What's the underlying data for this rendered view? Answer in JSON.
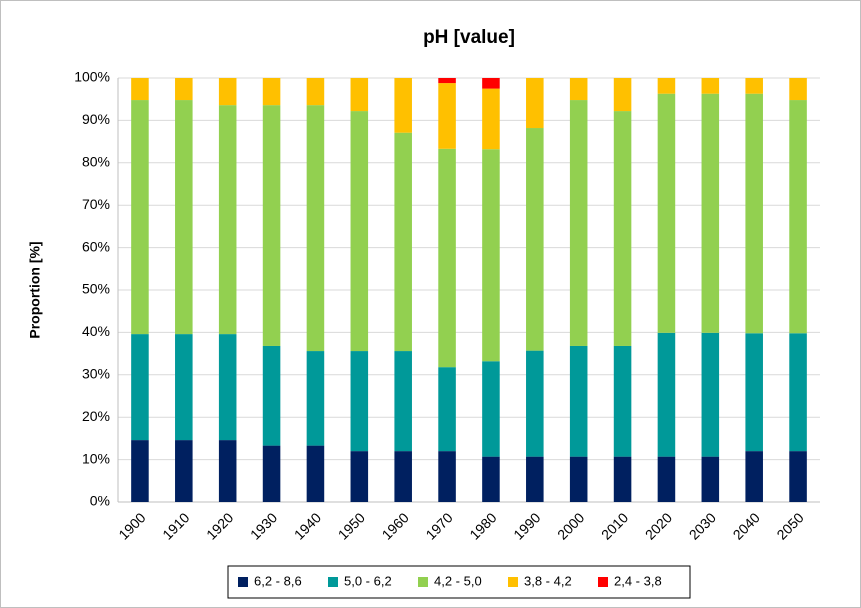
{
  "chart_data": {
    "type": "stacked_bar",
    "title": "pH [value]",
    "y_label": "Proportion [%]",
    "categories": [
      "1900",
      "1910",
      "1920",
      "1930",
      "1940",
      "1950",
      "1960",
      "1970",
      "1980",
      "1990",
      "2000",
      "2010",
      "2020",
      "2030",
      "2040",
      "2050"
    ],
    "series": [
      {
        "name": "6,2 - 8,6",
        "color": "#002060",
        "values": [
          14.6,
          14.6,
          14.6,
          13.3,
          13.3,
          12,
          12,
          12,
          10.7,
          10.7,
          10.7,
          10.7,
          10.7,
          10.7,
          12,
          12
        ]
      },
      {
        "name": "5,0 - 6,2",
        "color": "#009999",
        "values": [
          25,
          25,
          25,
          23.5,
          22.3,
          23.6,
          23.6,
          19.8,
          22.5,
          25,
          26.1,
          26.1,
          29.2,
          29.2,
          27.8,
          27.8
        ]
      },
      {
        "name": "4,2 - 5,0",
        "color": "#92d050",
        "values": [
          55.2,
          55.2,
          54,
          56.8,
          58,
          56.6,
          51.5,
          51.5,
          50,
          52.5,
          58,
          55.4,
          56.4,
          56.4,
          56.5,
          55
        ]
      },
      {
        "name": "3,8 - 4,2",
        "color": "#ffc000",
        "values": [
          5.2,
          5.2,
          6.4,
          6.4,
          6.4,
          7.8,
          12.9,
          15.5,
          14.3,
          11.8,
          5.2,
          7.8,
          3.7,
          3.7,
          3.7,
          5.2
        ]
      },
      {
        "name": "2,4 - 3,8",
        "color": "#ff0000",
        "values": [
          0,
          0,
          0,
          0,
          0,
          0,
          0,
          1.2,
          2.5,
          0,
          0,
          0,
          0,
          0,
          0,
          0
        ]
      }
    ],
    "ylim": [
      0,
      100
    ],
    "yticks": [
      {
        "value": 0,
        "label": "0%"
      },
      {
        "value": 10,
        "label": "10%"
      },
      {
        "value": 20,
        "label": "20%"
      },
      {
        "value": 30,
        "label": "30%"
      },
      {
        "value": 40,
        "label": "40%"
      },
      {
        "value": 50,
        "label": "50%"
      },
      {
        "value": 60,
        "label": "60%"
      },
      {
        "value": 70,
        "label": "70%"
      },
      {
        "value": 80,
        "label": "80%"
      },
      {
        "value": 90,
        "label": "90%"
      },
      {
        "value": 100,
        "label": "100%"
      }
    ],
    "grid": true,
    "legend": "bottom"
  }
}
